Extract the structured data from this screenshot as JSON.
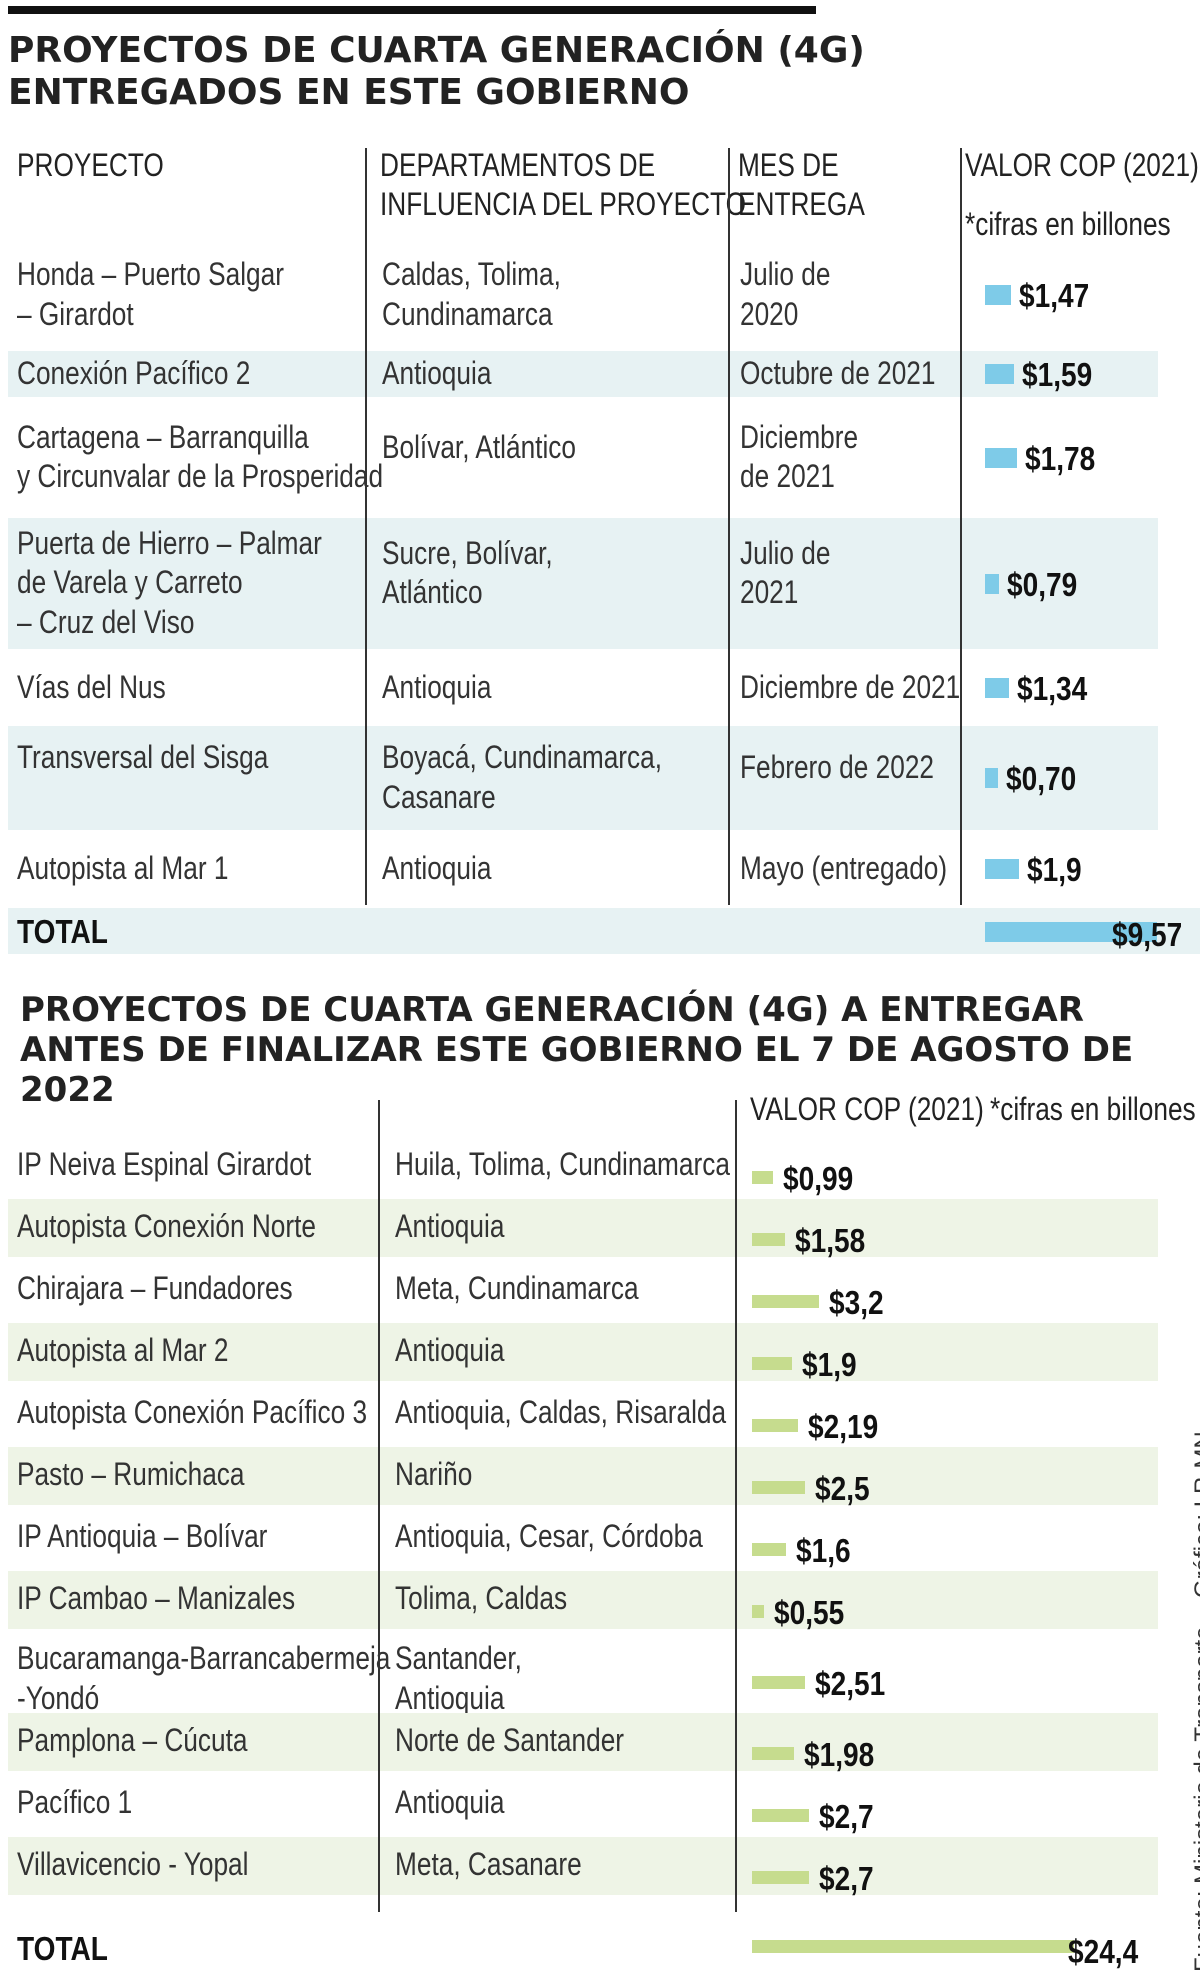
{
  "colors": {
    "blue_bar": "#7ecbe8",
    "green_bar": "#c6dc8e",
    "blue_band": "#e7f2f3",
    "green_band": "#eef4e6"
  },
  "section1": {
    "title_line1": "PROYECTOS DE CUARTA GENERACIÓN (4G)",
    "title_line2": "ENTREGADOS EN ESTE GOBIERNO",
    "headers": {
      "project": "PROYECTO",
      "dept_line1": "DEPARTAMENTOS DE",
      "dept_line2": "INFLUENCIA DEL PROYECTO",
      "month_line1": "MES DE",
      "month_line2": "ENTREGA",
      "value": "VALOR COP (2021)",
      "value_note": "*cifras en billones"
    },
    "total_label": "TOTAL",
    "total_value": "$9,57"
  },
  "section2": {
    "title_line1": "PROYECTOS DE CUARTA GENERACIÓN (4G) A ENTREGAR",
    "title_line2": "ANTES DE FINALIZAR ESTE GOBIERNO EL 7 DE AGOSTO DE 2022",
    "headers": {
      "value": "VALOR COP (2021)",
      "value_note": "*cifras en billones"
    },
    "total_label": "TOTAL",
    "total_value": "$24,4"
  },
  "source": "Fuente: Ministerio de Transporte",
  "credit": "Gráfico: LR-MN",
  "chart_data": [
    {
      "type": "table",
      "title": "PROYECTOS DE CUARTA GENERACIÓN (4G) ENTREGADOS EN ESTE GOBIERNO",
      "unit": "billones COP (2021)",
      "rows": [
        {
          "project": [
            "Honda – Puerto Salgar",
            "– Girardot"
          ],
          "departments": [
            "Caldas, Tolima,",
            "Cundinamarca"
          ],
          "month": [
            "Julio de",
            "2020"
          ],
          "value": 1.47,
          "label": "$1,47"
        },
        {
          "project": [
            "Conexión Pacífico 2"
          ],
          "departments": [
            "Antioquia"
          ],
          "month": [
            "Octubre de 2021"
          ],
          "value": 1.59,
          "label": "$1,59"
        },
        {
          "project": [
            "Cartagena – Barranquilla",
            "y Circunvalar de la Prosperidad"
          ],
          "departments": [
            "Bolívar, Atlántico"
          ],
          "month": [
            "Diciembre",
            "de 2021"
          ],
          "value": 1.78,
          "label": "$1,78"
        },
        {
          "project": [
            "Puerta de Hierro – Palmar",
            "de Varela y Carreto",
            "– Cruz del Viso"
          ],
          "departments": [
            "Sucre, Bolívar,",
            "Atlántico"
          ],
          "month": [
            "Julio de",
            "2021"
          ],
          "value": 0.79,
          "label": "$0,79"
        },
        {
          "project": [
            "Vías del Nus"
          ],
          "departments": [
            "Antioquia"
          ],
          "month": [
            "Diciembre de 2021"
          ],
          "value": 1.34,
          "label": "$1,34"
        },
        {
          "project": [
            "Transversal del Sisga"
          ],
          "departments": [
            "Boyacá, Cundinamarca,",
            "Casanare"
          ],
          "month": [
            "Febrero de 2022"
          ],
          "value": 0.7,
          "label": "$0,70"
        },
        {
          "project": [
            "Autopista al Mar 1"
          ],
          "departments": [
            "Antioquia"
          ],
          "month": [
            "Mayo (entregado)"
          ],
          "value": 1.9,
          "label": "$1,9"
        }
      ],
      "total": 9.57
    },
    {
      "type": "table",
      "title": "PROYECTOS DE CUARTA GENERACIÓN (4G) A ENTREGAR ANTES DE FINALIZAR ESTE GOBIERNO EL 7 DE AGOSTO DE 2022",
      "unit": "billones COP (2021)",
      "rows": [
        {
          "project": [
            "IP Neiva Espinal Girardot"
          ],
          "departments": [
            "Huila, Tolima, Cundinamarca"
          ],
          "value": 0.99,
          "label": "$0,99"
        },
        {
          "project": [
            "Autopista Conexión Norte"
          ],
          "departments": [
            "Antioquia"
          ],
          "value": 1.58,
          "label": "$1,58"
        },
        {
          "project": [
            "Chirajara – Fundadores"
          ],
          "departments": [
            "Meta, Cundinamarca"
          ],
          "value": 3.2,
          "label": "$3,2"
        },
        {
          "project": [
            "Autopista al Mar 2"
          ],
          "departments": [
            "Antioquia"
          ],
          "value": 1.9,
          "label": "$1,9"
        },
        {
          "project": [
            "Autopista Conexión Pacífico 3"
          ],
          "departments": [
            "Antioquia, Caldas, Risaralda"
          ],
          "value": 2.19,
          "label": "$2,19"
        },
        {
          "project": [
            "Pasto – Rumichaca"
          ],
          "departments": [
            "Nariño"
          ],
          "value": 2.5,
          "label": "$2,5"
        },
        {
          "project": [
            "IP Antioquia – Bolívar"
          ],
          "departments": [
            "Antioquia, Cesar, Córdoba"
          ],
          "value": 1.6,
          "label": "$1,6"
        },
        {
          "project": [
            "IP Cambao – Manizales"
          ],
          "departments": [
            "Tolima, Caldas"
          ],
          "value": 0.55,
          "label": "$0,55"
        },
        {
          "project": [
            "Bucaramanga-Barrancabermeja",
            "-Yondó"
          ],
          "departments": [
            "Santander,",
            "Antioquia"
          ],
          "value": 2.51,
          "label": "$2,51"
        },
        {
          "project": [
            "Pamplona – Cúcuta"
          ],
          "departments": [
            "Norte de Santander"
          ],
          "value": 1.98,
          "label": "$1,98"
        },
        {
          "project": [
            "Pacífico 1"
          ],
          "departments": [
            "Antioquia"
          ],
          "value": 2.7,
          "label": "$2,7"
        },
        {
          "project": [
            "Villavicencio  - Yopal"
          ],
          "departments": [
            "Meta, Casanare"
          ],
          "value": 2.7,
          "label": "$2,7"
        }
      ],
      "total": 24.4
    }
  ]
}
